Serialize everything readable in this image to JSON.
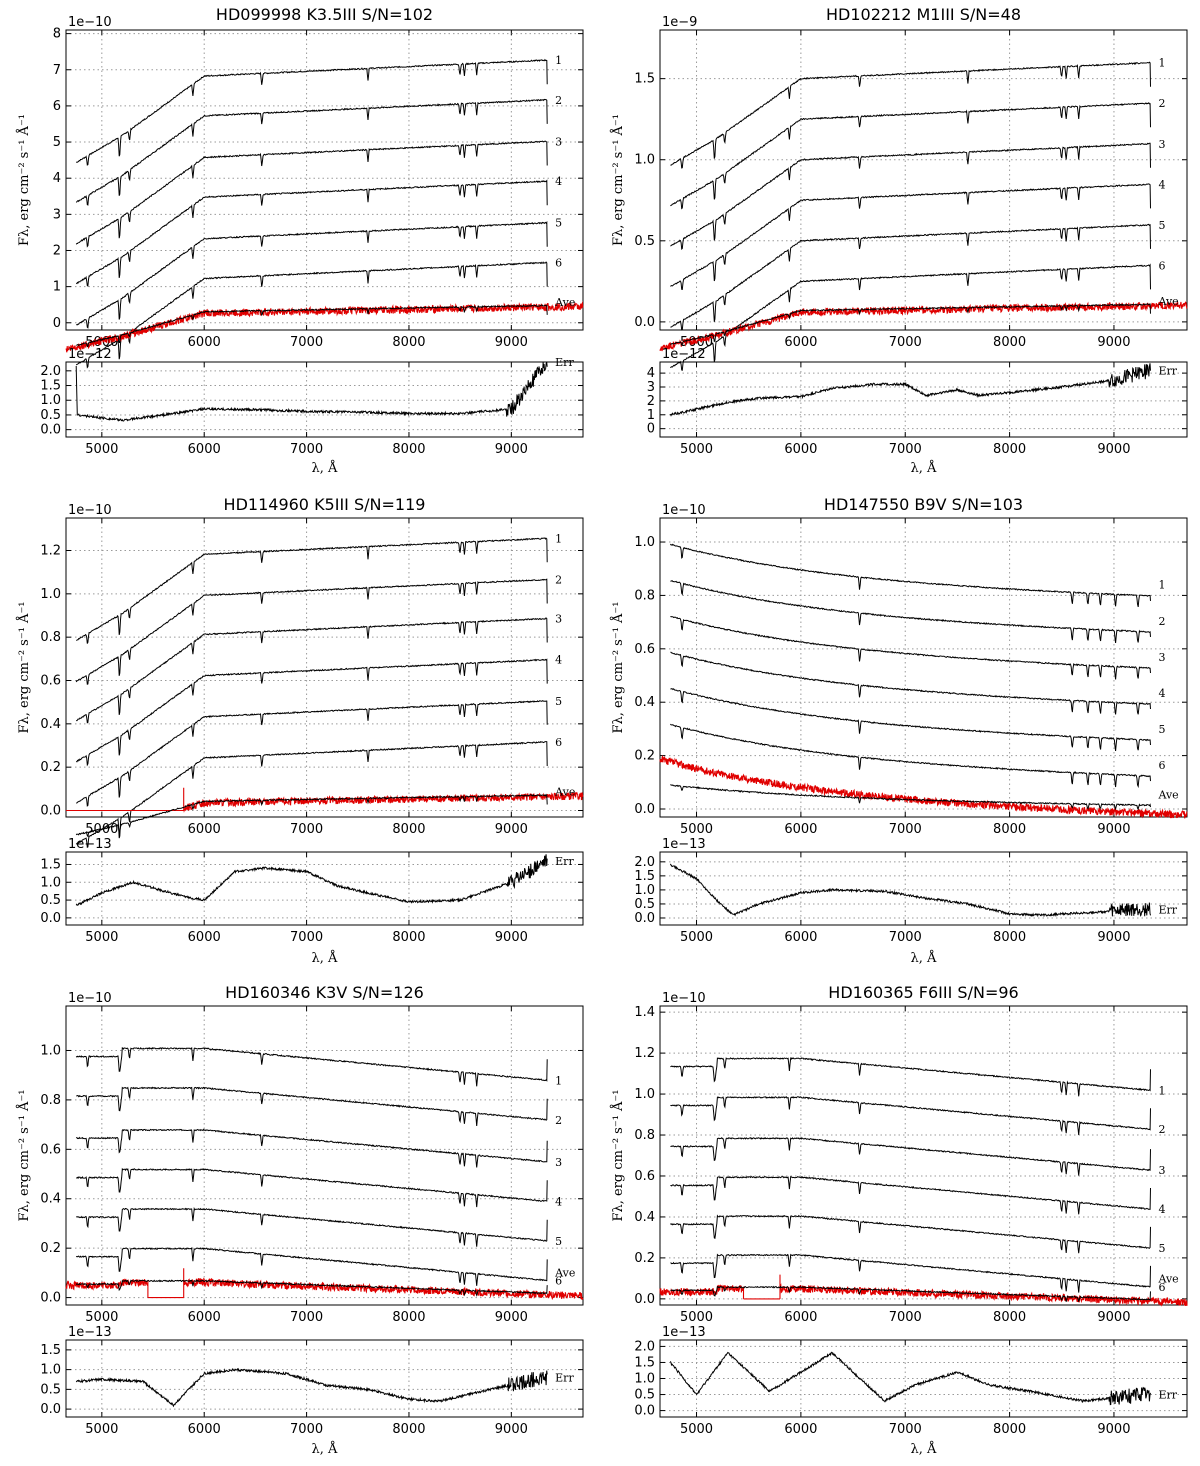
{
  "figure": {
    "ylabel": "Fλ, erg cm⁻² s⁻¹ Å⁻¹",
    "xlabel": "λ, Å"
  },
  "chart_data": [
    {
      "type": "line",
      "title": "HD099998  K3.5III  S/N=102",
      "temperature": "cool",
      "main": {
        "scale_text": "1e−10",
        "xlim": [
          4650,
          9700
        ],
        "ylim": [
          -0.2,
          8.1
        ],
        "yticks": [
          0,
          1,
          2,
          3,
          4,
          5,
          6,
          7,
          8
        ],
        "xticks": [
          5000,
          6000,
          7000,
          8000,
          9000
        ],
        "offsets": [
          7.05,
          5.95,
          4.8,
          3.7,
          2.55,
          1.45
        ],
        "series_labels": [
          "1",
          "2",
          "3",
          "4",
          "5",
          "6"
        ],
        "ave_label": "Ave",
        "ave_level": 0.35,
        "ave_x_range": [
          4650,
          9700
        ],
        "ave_gap": null
      },
      "err": {
        "scale_text": "1e−12",
        "ylim": [
          -0.25,
          2.3
        ],
        "yticks": [
          0.0,
          0.5,
          1.0,
          1.5,
          2.0
        ],
        "label": "Err",
        "profile": [
          [
            4750,
            2.2
          ],
          [
            4760,
            0.5
          ],
          [
            5000,
            0.4
          ],
          [
            5200,
            0.32
          ],
          [
            5500,
            0.45
          ],
          [
            6000,
            0.7
          ],
          [
            6500,
            0.68
          ],
          [
            7000,
            0.62
          ],
          [
            7500,
            0.6
          ],
          [
            8000,
            0.55
          ],
          [
            8500,
            0.55
          ],
          [
            9000,
            0.7
          ],
          [
            9200,
            1.6
          ],
          [
            9350,
            2.3
          ]
        ]
      }
    },
    {
      "type": "line",
      "title": "HD102212  M1III  S/N=48",
      "temperature": "cool",
      "main": {
        "scale_text": "1e−9",
        "xlim": [
          4650,
          9700
        ],
        "ylim": [
          -0.05,
          1.8
        ],
        "yticks": [
          0.0,
          0.5,
          1.0,
          1.5
        ],
        "xticks": [
          5000,
          6000,
          7000,
          8000,
          9000
        ],
        "offsets": [
          1.55,
          1.3,
          1.05,
          0.8,
          0.55,
          0.3
        ],
        "series_labels": [
          "1",
          "2",
          "3",
          "4",
          "5",
          "6"
        ],
        "ave_label": "Ave",
        "ave_level": 0.08,
        "ave_x_range": [
          4650,
          9700
        ],
        "ave_gap": null
      },
      "err": {
        "scale_text": "1e−12",
        "ylim": [
          -0.6,
          4.8
        ],
        "yticks": [
          0,
          1,
          2,
          3,
          4
        ],
        "label": "Err",
        "profile": [
          [
            4750,
            1.0
          ],
          [
            5000,
            1.4
          ],
          [
            5300,
            1.9
          ],
          [
            5600,
            2.2
          ],
          [
            6000,
            2.3
          ],
          [
            6300,
            2.9
          ],
          [
            6700,
            3.2
          ],
          [
            7000,
            3.2
          ],
          [
            7200,
            2.4
          ],
          [
            7500,
            2.8
          ],
          [
            7700,
            2.4
          ],
          [
            8000,
            2.6
          ],
          [
            8500,
            3.0
          ],
          [
            9000,
            3.5
          ],
          [
            9350,
            4.2
          ]
        ]
      }
    },
    {
      "type": "line",
      "title": "HD114960  K5III  S/N=119",
      "temperature": "cool",
      "main": {
        "scale_text": "1e−10",
        "xlim": [
          4650,
          9700
        ],
        "ylim": [
          -0.03,
          1.35
        ],
        "yticks": [
          0.0,
          0.2,
          0.4,
          0.6,
          0.8,
          1.0,
          1.2
        ],
        "xticks": [
          5000,
          6000,
          7000,
          8000,
          9000
        ],
        "offsets": [
          1.22,
          1.03,
          0.85,
          0.66,
          0.47,
          0.28
        ],
        "series_labels": [
          "1",
          "2",
          "3",
          "4",
          "5",
          "6"
        ],
        "ave_label": "Ave",
        "ave_level": 0.05,
        "ave_x_range": [
          4650,
          9700
        ],
        "ave_gap": [
          4650,
          5800
        ]
      },
      "err": {
        "scale_text": "1e−13",
        "ylim": [
          -0.2,
          1.85
        ],
        "yticks": [
          0.0,
          0.5,
          1.0,
          1.5
        ],
        "label": "Err",
        "profile": [
          [
            4750,
            0.35
          ],
          [
            5000,
            0.7
          ],
          [
            5300,
            1.0
          ],
          [
            5800,
            0.6
          ],
          [
            6000,
            0.5
          ],
          [
            6300,
            1.3
          ],
          [
            6600,
            1.4
          ],
          [
            7000,
            1.3
          ],
          [
            7300,
            0.9
          ],
          [
            7600,
            0.7
          ],
          [
            8000,
            0.45
          ],
          [
            8500,
            0.5
          ],
          [
            9000,
            1.0
          ],
          [
            9350,
            1.6
          ]
        ]
      }
    },
    {
      "type": "line",
      "title": "HD147550  B9V  S/N=103",
      "temperature": "hot",
      "main": {
        "scale_text": "1e−10",
        "xlim": [
          4650,
          9700
        ],
        "ylim": [
          -0.03,
          1.09
        ],
        "yticks": [
          0.0,
          0.2,
          0.4,
          0.6,
          0.8,
          1.0
        ],
        "xticks": [
          5000,
          6000,
          7000,
          8000,
          9000
        ],
        "offsets": [
          0.84,
          0.705,
          0.57,
          0.435,
          0.3,
          0.165
        ],
        "series_labels": [
          "1",
          "2",
          "3",
          "4",
          "5",
          "6"
        ],
        "ave_label": "Ave",
        "ave_level": 0.025,
        "ave_x_range": [
          4650,
          9700
        ],
        "ave_gap": null
      },
      "err": {
        "scale_text": "1e−13",
        "ylim": [
          -0.25,
          2.35
        ],
        "yticks": [
          0.0,
          0.5,
          1.0,
          1.5,
          2.0
        ],
        "label": "Err",
        "profile": [
          [
            4750,
            1.9
          ],
          [
            5000,
            1.4
          ],
          [
            5200,
            0.6
          ],
          [
            5350,
            0.1
          ],
          [
            5600,
            0.5
          ],
          [
            6000,
            0.9
          ],
          [
            6300,
            1.0
          ],
          [
            6800,
            0.95
          ],
          [
            7200,
            0.7
          ],
          [
            7600,
            0.5
          ],
          [
            8000,
            0.15
          ],
          [
            8300,
            0.1
          ],
          [
            8800,
            0.2
          ],
          [
            9300,
            0.3
          ]
        ]
      }
    },
    {
      "type": "line",
      "title": "HD160346  K3V  S/N=126",
      "temperature": "warm",
      "main": {
        "scale_text": "1e−10",
        "xlim": [
          4650,
          9700
        ],
        "ylim": [
          -0.03,
          1.18
        ],
        "yticks": [
          0.0,
          0.2,
          0.4,
          0.6,
          0.8,
          1.0
        ],
        "xticks": [
          5000,
          6000,
          7000,
          8000,
          9000
        ],
        "offsets": [
          1.03,
          0.87,
          0.7,
          0.54,
          0.38,
          0.22
        ],
        "series_labels": [
          "1",
          "2",
          "3",
          "4",
          "5",
          "6"
        ],
        "ave_label": "Ave",
        "ave_level": 0.07,
        "ave_x_range": [
          4650,
          9700
        ],
        "ave_gap": [
          5450,
          5800
        ]
      },
      "err": {
        "scale_text": "1e−13",
        "ylim": [
          -0.2,
          1.75
        ],
        "yticks": [
          0.0,
          0.5,
          1.0,
          1.5
        ],
        "label": "Err",
        "profile": [
          [
            4750,
            0.7
          ],
          [
            5000,
            0.75
          ],
          [
            5400,
            0.7
          ],
          [
            5700,
            0.1
          ],
          [
            6000,
            0.9
          ],
          [
            6300,
            1.0
          ],
          [
            6800,
            0.9
          ],
          [
            7200,
            0.6
          ],
          [
            7600,
            0.5
          ],
          [
            8000,
            0.25
          ],
          [
            8300,
            0.2
          ],
          [
            8800,
            0.5
          ],
          [
            9300,
            0.8
          ]
        ]
      }
    },
    {
      "type": "line",
      "title": "HD160365  F6III  S/N=96",
      "temperature": "warm",
      "main": {
        "scale_text": "1e−10",
        "xlim": [
          4650,
          9700
        ],
        "ylim": [
          -0.03,
          1.43
        ],
        "yticks": [
          0.0,
          0.2,
          0.4,
          0.6,
          0.8,
          1.0,
          1.2,
          1.4
        ],
        "xticks": [
          5000,
          6000,
          7000,
          8000,
          9000
        ],
        "offsets": [
          1.2,
          1.01,
          0.81,
          0.62,
          0.43,
          0.24
        ],
        "series_labels": [
          "1",
          "2",
          "3",
          "4",
          "5",
          "6"
        ],
        "ave_label": "Ave",
        "ave_level": 0.06,
        "ave_x_range": [
          4650,
          9700
        ],
        "ave_gap": [
          5450,
          5800
        ]
      },
      "err": {
        "scale_text": "1e−13",
        "ylim": [
          -0.2,
          2.2
        ],
        "yticks": [
          0.0,
          0.5,
          1.0,
          1.5,
          2.0
        ],
        "label": "Err",
        "profile": [
          [
            4750,
            1.5
          ],
          [
            5000,
            0.5
          ],
          [
            5300,
            1.8
          ],
          [
            5700,
            0.6
          ],
          [
            6000,
            1.2
          ],
          [
            6300,
            1.8
          ],
          [
            6700,
            0.6
          ],
          [
            6800,
            0.3
          ],
          [
            7100,
            0.8
          ],
          [
            7500,
            1.2
          ],
          [
            7800,
            0.8
          ],
          [
            8200,
            0.6
          ],
          [
            8700,
            0.3
          ],
          [
            9300,
            0.5
          ]
        ]
      }
    }
  ]
}
